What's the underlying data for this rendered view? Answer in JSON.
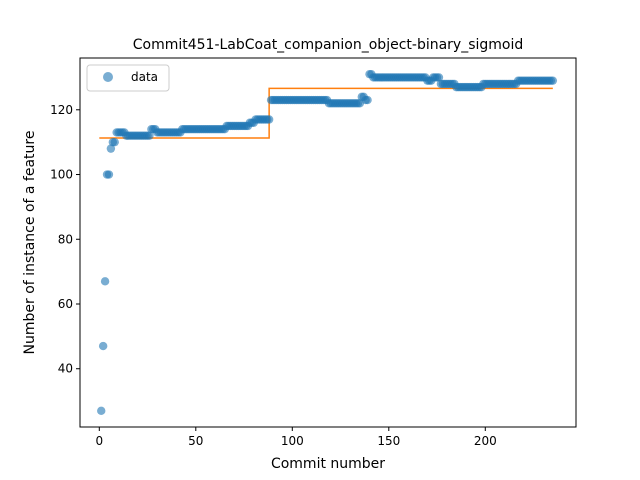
{
  "chart_data": {
    "type": "scatter",
    "title": "Commit451-LabCoat_companion_object-binary_sigmoid",
    "xlabel": "Commit number",
    "ylabel": "Number of instance of a feature",
    "xlim": [
      -10,
      247
    ],
    "ylim": [
      22,
      136
    ],
    "xticks": [
      0,
      50,
      100,
      150,
      200
    ],
    "yticks": [
      40,
      60,
      80,
      100,
      120
    ],
    "grid": false,
    "legend": {
      "placement": "top-left",
      "entries": [
        "data"
      ]
    },
    "colors": {
      "data": "#1f77b4",
      "fit": "#ff7f0e"
    },
    "series": [
      {
        "name": "data",
        "segments": [
          {
            "x_start": 1,
            "x_end": 1,
            "y": 27
          },
          {
            "x_start": 2,
            "x_end": 2,
            "y": 47
          },
          {
            "x_start": 3,
            "x_end": 3,
            "y": 67
          },
          {
            "x_start": 4,
            "x_end": 5,
            "y": 100
          },
          {
            "x_start": 6,
            "x_end": 6,
            "y": 108
          },
          {
            "x_start": 7,
            "x_end": 8,
            "y": 110
          },
          {
            "x_start": 9,
            "x_end": 13,
            "y": 113
          },
          {
            "x_start": 14,
            "x_end": 26,
            "y": 112
          },
          {
            "x_start": 27,
            "x_end": 29,
            "y": 114
          },
          {
            "x_start": 30,
            "x_end": 42,
            "y": 113
          },
          {
            "x_start": 43,
            "x_end": 65,
            "y": 114
          },
          {
            "x_start": 66,
            "x_end": 77,
            "y": 115
          },
          {
            "x_start": 78,
            "x_end": 80,
            "y": 116
          },
          {
            "x_start": 81,
            "x_end": 88,
            "y": 117
          },
          {
            "x_start": 89,
            "x_end": 118,
            "y": 123
          },
          {
            "x_start": 119,
            "x_end": 135,
            "y": 122
          },
          {
            "x_start": 136,
            "x_end": 137,
            "y": 124
          },
          {
            "x_start": 138,
            "x_end": 139,
            "y": 123
          },
          {
            "x_start": 140,
            "x_end": 141,
            "y": 131
          },
          {
            "x_start": 142,
            "x_end": 169,
            "y": 130
          },
          {
            "x_start": 170,
            "x_end": 172,
            "y": 129
          },
          {
            "x_start": 173,
            "x_end": 176,
            "y": 130
          },
          {
            "x_start": 177,
            "x_end": 184,
            "y": 128
          },
          {
            "x_start": 185,
            "x_end": 198,
            "y": 127
          },
          {
            "x_start": 199,
            "x_end": 216,
            "y": 128
          },
          {
            "x_start": 217,
            "x_end": 235,
            "y": 129
          }
        ]
      },
      {
        "name": "",
        "style": "line",
        "x": [
          0,
          88,
          88,
          235
        ],
        "y": [
          111.3,
          111.3,
          126.6,
          126.6
        ]
      }
    ]
  }
}
